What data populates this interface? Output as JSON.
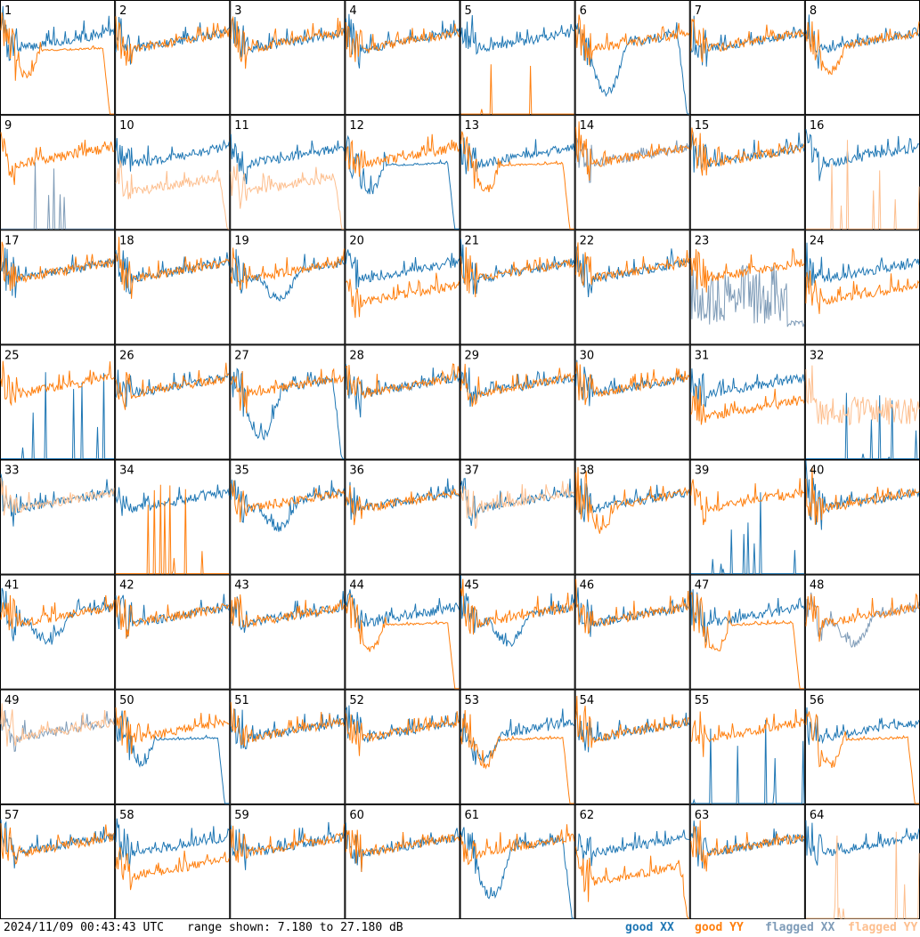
{
  "footer": {
    "timestamp": "2024/11/09 00:43:43 UTC",
    "range_text": "range shown: 7.180 to 27.180 dB"
  },
  "legend": [
    {
      "key": "good_xx",
      "label": "good XX",
      "color": "#1f77b4"
    },
    {
      "key": "good_yy",
      "label": "good YY",
      "color": "#ff7f0e"
    },
    {
      "key": "flagged_xx",
      "label": "flagged XX",
      "color": "#7f9cb8"
    },
    {
      "key": "flagged_yy",
      "label": "flagged YY",
      "color": "#fdbf8f"
    }
  ],
  "chart_data": {
    "type": "line",
    "ylim": [
      7.18,
      27.18
    ],
    "yunit": "dB",
    "grid_rows": 8,
    "grid_cols": 8,
    "panels": [
      {
        "id": "1",
        "xx": "good",
        "yy": "good",
        "xx_shape": "normal",
        "yy_shape": "dip_drop"
      },
      {
        "id": "2",
        "xx": "good",
        "yy": "good",
        "xx_shape": "normal",
        "yy_shape": "normal"
      },
      {
        "id": "3",
        "xx": "good",
        "yy": "good",
        "xx_shape": "normal",
        "yy_shape": "normal"
      },
      {
        "id": "4",
        "xx": "good",
        "yy": "good",
        "xx_shape": "normal",
        "yy_shape": "normal"
      },
      {
        "id": "5",
        "xx": "good",
        "yy": "good",
        "xx_shape": "normal",
        "yy_shape": "dead"
      },
      {
        "id": "6",
        "xx": "good",
        "yy": "good",
        "xx_shape": "deep_dip_drop",
        "yy_shape": "normal"
      },
      {
        "id": "7",
        "xx": "good",
        "yy": "good",
        "xx_shape": "normal",
        "yy_shape": "normal"
      },
      {
        "id": "8",
        "xx": "good",
        "yy": "good",
        "xx_shape": "normal",
        "yy_shape": "dip"
      },
      {
        "id": "9",
        "xx": "flagged",
        "yy": "good",
        "xx_shape": "dead",
        "yy_shape": "normal"
      },
      {
        "id": "10",
        "xx": "good",
        "yy": "flagged",
        "xx_shape": "normal",
        "yy_shape": "low_drop"
      },
      {
        "id": "11",
        "xx": "good",
        "yy": "flagged",
        "xx_shape": "normal",
        "yy_shape": "low_drop"
      },
      {
        "id": "12",
        "xx": "good",
        "yy": "good",
        "xx_shape": "dip_drop",
        "yy_shape": "normal"
      },
      {
        "id": "13",
        "xx": "good",
        "yy": "good",
        "xx_shape": "normal",
        "yy_shape": "dip_drop"
      },
      {
        "id": "14",
        "xx": "flagged",
        "yy": "good",
        "xx_shape": "normal",
        "yy_shape": "normal"
      },
      {
        "id": "15",
        "xx": "good",
        "yy": "good",
        "xx_shape": "normal",
        "yy_shape": "normal"
      },
      {
        "id": "16",
        "xx": "good",
        "yy": "flagged",
        "xx_shape": "normal",
        "yy_shape": "dead"
      },
      {
        "id": "17",
        "xx": "good",
        "yy": "good",
        "xx_shape": "normal",
        "yy_shape": "normal"
      },
      {
        "id": "18",
        "xx": "good",
        "yy": "good",
        "xx_shape": "normal",
        "yy_shape": "normal"
      },
      {
        "id": "19",
        "xx": "good",
        "yy": "good",
        "xx_shape": "valley",
        "yy_shape": "normal"
      },
      {
        "id": "20",
        "xx": "good",
        "yy": "good",
        "xx_shape": "normal",
        "yy_shape": "low"
      },
      {
        "id": "21",
        "xx": "good",
        "yy": "good",
        "xx_shape": "normal",
        "yy_shape": "normal"
      },
      {
        "id": "22",
        "xx": "good",
        "yy": "good",
        "xx_shape": "normal",
        "yy_shape": "normal"
      },
      {
        "id": "23",
        "xx": "flagged",
        "yy": "good",
        "xx_shape": "noisy_low",
        "yy_shape": "normal"
      },
      {
        "id": "24",
        "xx": "good",
        "yy": "good",
        "xx_shape": "normal",
        "yy_shape": "low"
      },
      {
        "id": "25",
        "xx": "good",
        "yy": "good",
        "xx_shape": "dead",
        "yy_shape": "normal"
      },
      {
        "id": "26",
        "xx": "good",
        "yy": "good",
        "xx_shape": "normal",
        "yy_shape": "normal"
      },
      {
        "id": "27",
        "xx": "good",
        "yy": "good",
        "xx_shape": "deep_dip_drop",
        "yy_shape": "normal"
      },
      {
        "id": "28",
        "xx": "good",
        "yy": "good",
        "xx_shape": "normal",
        "yy_shape": "normal"
      },
      {
        "id": "29",
        "xx": "good",
        "yy": "good",
        "xx_shape": "normal",
        "yy_shape": "normal"
      },
      {
        "id": "30",
        "xx": "good",
        "yy": "good",
        "xx_shape": "normal",
        "yy_shape": "normal"
      },
      {
        "id": "31",
        "xx": "good",
        "yy": "good",
        "xx_shape": "normal",
        "yy_shape": "low"
      },
      {
        "id": "32",
        "xx": "good",
        "yy": "flagged",
        "xx_shape": "dead",
        "yy_shape": "noisy_mid"
      },
      {
        "id": "33",
        "xx": "good",
        "yy": "flagged",
        "xx_shape": "normal",
        "yy_shape": "normal"
      },
      {
        "id": "34",
        "xx": "good",
        "yy": "good",
        "xx_shape": "normal",
        "yy_shape": "dead"
      },
      {
        "id": "35",
        "xx": "good",
        "yy": "good",
        "xx_shape": "valley",
        "yy_shape": "normal"
      },
      {
        "id": "36",
        "xx": "good",
        "yy": "good",
        "xx_shape": "normal",
        "yy_shape": "normal"
      },
      {
        "id": "37",
        "xx": "good",
        "yy": "flagged",
        "xx_shape": "normal",
        "yy_shape": "normal"
      },
      {
        "id": "38",
        "xx": "good",
        "yy": "good",
        "xx_shape": "normal",
        "yy_shape": "dip"
      },
      {
        "id": "39",
        "xx": "good",
        "yy": "good",
        "xx_shape": "dead",
        "yy_shape": "normal"
      },
      {
        "id": "40",
        "xx": "good",
        "yy": "good",
        "xx_shape": "normal",
        "yy_shape": "normal"
      },
      {
        "id": "41",
        "xx": "good",
        "yy": "good",
        "xx_shape": "valley",
        "yy_shape": "normal"
      },
      {
        "id": "42",
        "xx": "good",
        "yy": "good",
        "xx_shape": "normal",
        "yy_shape": "normal"
      },
      {
        "id": "43",
        "xx": "good",
        "yy": "good",
        "xx_shape": "normal",
        "yy_shape": "normal"
      },
      {
        "id": "44",
        "xx": "good",
        "yy": "good",
        "xx_shape": "normal",
        "yy_shape": "dip_drop"
      },
      {
        "id": "45",
        "xx": "good",
        "yy": "good",
        "xx_shape": "valley",
        "yy_shape": "normal"
      },
      {
        "id": "46",
        "xx": "good",
        "yy": "good",
        "xx_shape": "normal",
        "yy_shape": "normal"
      },
      {
        "id": "47",
        "xx": "good",
        "yy": "good",
        "xx_shape": "normal",
        "yy_shape": "dip_drop"
      },
      {
        "id": "48",
        "xx": "flagged",
        "yy": "good",
        "xx_shape": "valley",
        "yy_shape": "normal"
      },
      {
        "id": "49",
        "xx": "flagged",
        "yy": "flagged",
        "xx_shape": "normal",
        "yy_shape": "normal"
      },
      {
        "id": "50",
        "xx": "good",
        "yy": "good",
        "xx_shape": "dip_drop",
        "yy_shape": "normal"
      },
      {
        "id": "51",
        "xx": "good",
        "yy": "good",
        "xx_shape": "normal",
        "yy_shape": "normal"
      },
      {
        "id": "52",
        "xx": "good",
        "yy": "good",
        "xx_shape": "normal",
        "yy_shape": "normal"
      },
      {
        "id": "53",
        "xx": "good",
        "yy": "good",
        "xx_shape": "dip",
        "yy_shape": "dip_drop"
      },
      {
        "id": "54",
        "xx": "good",
        "yy": "good",
        "xx_shape": "normal",
        "yy_shape": "normal"
      },
      {
        "id": "55",
        "xx": "good",
        "yy": "good",
        "xx_shape": "dead",
        "yy_shape": "normal"
      },
      {
        "id": "56",
        "xx": "good",
        "yy": "good",
        "xx_shape": "normal",
        "yy_shape": "dip_drop"
      },
      {
        "id": "57",
        "xx": "good",
        "yy": "good",
        "xx_shape": "normal",
        "yy_shape": "normal"
      },
      {
        "id": "58",
        "xx": "good",
        "yy": "good",
        "xx_shape": "normal",
        "yy_shape": "low"
      },
      {
        "id": "59",
        "xx": "good",
        "yy": "good",
        "xx_shape": "normal",
        "yy_shape": "normal"
      },
      {
        "id": "60",
        "xx": "good",
        "yy": "good",
        "xx_shape": "normal",
        "yy_shape": "normal"
      },
      {
        "id": "61",
        "xx": "good",
        "yy": "good",
        "xx_shape": "deep_dip_drop",
        "yy_shape": "normal"
      },
      {
        "id": "62",
        "xx": "good",
        "yy": "good",
        "xx_shape": "normal",
        "yy_shape": "low_drop"
      },
      {
        "id": "63",
        "xx": "good",
        "yy": "good",
        "xx_shape": "normal",
        "yy_shape": "normal"
      },
      {
        "id": "64",
        "xx": "good",
        "yy": "flagged",
        "xx_shape": "normal",
        "yy_shape": "dead"
      }
    ]
  }
}
